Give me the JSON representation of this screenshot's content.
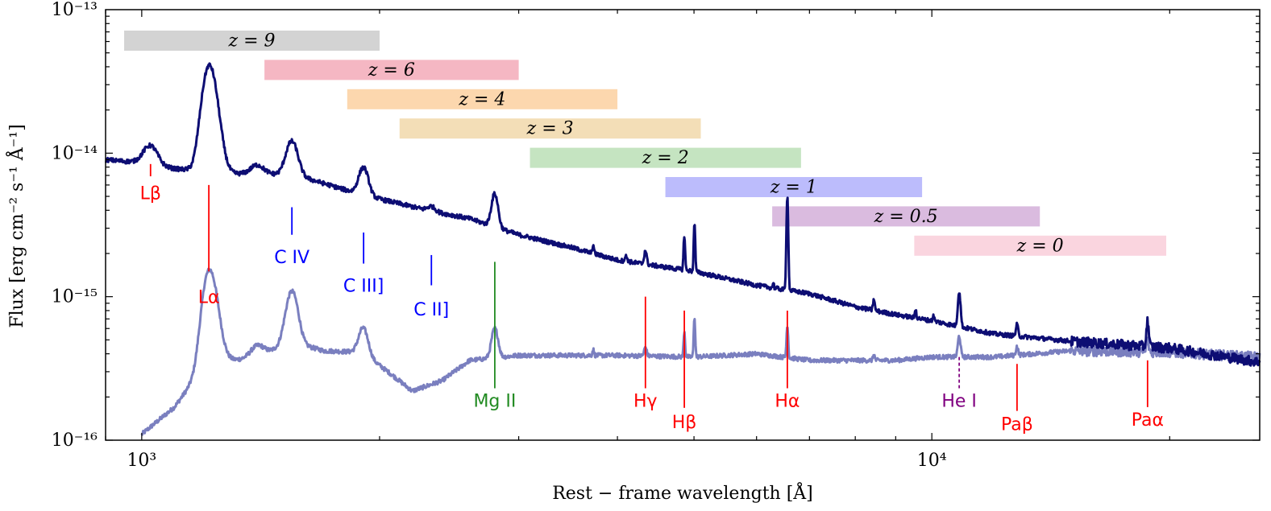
{
  "chart_data": {
    "type": "line",
    "title": "",
    "xlabel": "Rest − frame wavelength [Å]",
    "ylabel": "Flux [erg cm⁻² s⁻¹ Å⁻¹]",
    "xscale": "log",
    "yscale": "log",
    "xlim": [
      900,
      26000
    ],
    "ylim": [
      1e-16,
      1e-13
    ],
    "x_tick_labels": [
      {
        "value": 1000,
        "label": "10³"
      },
      {
        "value": 10000,
        "label": "10⁴"
      }
    ],
    "y_tick_labels": [
      {
        "value": 1e-16,
        "label": "10⁻¹⁶"
      },
      {
        "value": 1e-15,
        "label": "10⁻¹⁵"
      },
      {
        "value": 1e-14,
        "label": "10⁻¹⁴"
      },
      {
        "value": 1e-13,
        "label": "10⁻¹³"
      }
    ],
    "series": [
      {
        "name": "composite-spectrum-dark",
        "color": "#0d0d73",
        "continuum": [
          [
            900,
            9e-15
          ],
          [
            1000,
            8.6e-15
          ],
          [
            1100,
            7.8e-15
          ],
          [
            1300,
            7.2e-15
          ],
          [
            1450,
            7.2e-15
          ],
          [
            1600,
            6.8e-15
          ],
          [
            1800,
            5.6e-15
          ],
          [
            2000,
            4.8e-15
          ],
          [
            2300,
            4e-15
          ],
          [
            2600,
            3.5e-15
          ],
          [
            3000,
            2.7e-15
          ],
          [
            3500,
            2.2e-15
          ],
          [
            4000,
            1.8e-15
          ],
          [
            5000,
            1.5e-15
          ],
          [
            6000,
            1.2e-15
          ],
          [
            7000,
            1.05e-15
          ],
          [
            8000,
            8.5e-16
          ],
          [
            9000,
            7.5e-16
          ],
          [
            10000,
            6.8e-16
          ],
          [
            12000,
            5.5e-16
          ],
          [
            15000,
            4.9e-16
          ],
          [
            20000,
            4.4e-16
          ],
          [
            26000,
            3.5e-16
          ]
        ],
        "lines": [
          [
            1026,
            0.35,
            20
          ],
          [
            1216,
            4.0,
            22
          ],
          [
            1240,
            0.8,
            25
          ],
          [
            1400,
            0.15,
            25
          ],
          [
            1549,
            0.75,
            25
          ],
          [
            1909,
            0.55,
            25
          ],
          [
            2326,
            0.08,
            25
          ],
          [
            2798,
            0.7,
            25
          ],
          [
            3727,
            0.15,
            8
          ],
          [
            4102,
            0.08,
            15
          ],
          [
            4340,
            0.25,
            15
          ],
          [
            4861,
            0.75,
            10
          ],
          [
            5007,
            1.2,
            10
          ],
          [
            6563,
            3.5,
            15
          ],
          [
            6300,
            0.1,
            10
          ],
          [
            8446,
            0.2,
            20
          ],
          [
            9540,
            0.15,
            20
          ],
          [
            10049,
            0.1,
            20
          ],
          [
            10830,
            0.75,
            40
          ],
          [
            12818,
            0.2,
            40
          ],
          [
            18751,
            0.5,
            60
          ]
        ]
      },
      {
        "name": "host-subtracted-spectrum-light",
        "color": "#7a7fbf",
        "continuum": [
          [
            1000,
            1.1e-16
          ],
          [
            1100,
            1.7e-16
          ],
          [
            1200,
            3.3e-16
          ],
          [
            1300,
            3.6e-16
          ],
          [
            1400,
            3.8e-16
          ],
          [
            1500,
            4.5e-16
          ],
          [
            1600,
            4.6e-16
          ],
          [
            1700,
            4.2e-16
          ],
          [
            1900,
            4.1e-16
          ],
          [
            2050,
            3e-16
          ],
          [
            2200,
            2.2e-16
          ],
          [
            2400,
            2.6e-16
          ],
          [
            2600,
            3.6e-16
          ],
          [
            3000,
            3.9e-16
          ],
          [
            4000,
            3.9e-16
          ],
          [
            5000,
            3.8e-16
          ],
          [
            6000,
            4e-16
          ],
          [
            7000,
            3.6e-16
          ],
          [
            8000,
            3.6e-16
          ],
          [
            9000,
            3.6e-16
          ],
          [
            10000,
            3.8e-16
          ],
          [
            12000,
            3.8e-16
          ],
          [
            15000,
            4.2e-16
          ],
          [
            20000,
            4.1e-16
          ],
          [
            26000,
            3.8e-16
          ]
        ],
        "lines": [
          [
            1216,
            3.2,
            22
          ],
          [
            1240,
            0.6,
            25
          ],
          [
            1400,
            0.2,
            25
          ],
          [
            1549,
            1.4,
            25
          ],
          [
            1909,
            0.5,
            25
          ],
          [
            2798,
            0.6,
            25
          ],
          [
            3727,
            0.1,
            8
          ],
          [
            4340,
            0.15,
            15
          ],
          [
            4861,
            0.5,
            10
          ],
          [
            5007,
            0.9,
            10
          ],
          [
            6563,
            0.7,
            15
          ],
          [
            8446,
            0.1,
            20
          ],
          [
            10830,
            0.4,
            40
          ],
          [
            12818,
            0.15,
            40
          ],
          [
            18751,
            0.2,
            60
          ]
        ]
      }
    ],
    "redshift_bands": [
      {
        "label": "z = 9",
        "range": [
          950,
          2000
        ],
        "color": "#d3d3d3"
      },
      {
        "label": "z = 6",
        "range": [
          1430,
          3000
        ],
        "color": "#f5b7c3"
      },
      {
        "label": "z = 4",
        "range": [
          1820,
          4000
        ],
        "color": "#fcd7ae"
      },
      {
        "label": "z = 3",
        "range": [
          2120,
          5100
        ],
        "color": "#f3deb7"
      },
      {
        "label": "z = 2",
        "range": [
          3100,
          6830
        ],
        "color": "#c5e4c1"
      },
      {
        "label": "z = 1",
        "range": [
          4600,
          9720
        ],
        "color": "#bcbcfc"
      },
      {
        "label": "z = 0.5",
        "range": [
          6280,
          13700
        ],
        "color": "#dabbdf"
      },
      {
        "label": "z = 0",
        "range": [
          9500,
          19800
        ],
        "color": "#fad5df"
      }
    ],
    "annotations": [
      {
        "label": "Lβ",
        "wavelength": 1026,
        "color": "#ff0000",
        "flux_top": 8.4e-15,
        "flux_bottom": 6.9e-15,
        "label_flux": 5.3e-15,
        "style": "solid"
      },
      {
        "label": "Lα",
        "wavelength": 1216,
        "color": "#ff0000",
        "flux_top": 6e-15,
        "flux_bottom": 1.5e-15,
        "label_flux": 1e-15,
        "style": "solid"
      },
      {
        "label": "C IV",
        "wavelength": 1549,
        "color": "#0000ff",
        "flux_top": 4.2e-15,
        "flux_bottom": 2.7e-15,
        "label_flux": 1.9e-15,
        "style": "solid"
      },
      {
        "label": "C III]",
        "wavelength": 1909,
        "color": "#0000ff",
        "flux_top": 2.8e-15,
        "flux_bottom": 1.7e-15,
        "label_flux": 1.2e-15,
        "style": "solid"
      },
      {
        "label": "C II]",
        "wavelength": 2326,
        "color": "#0000ff",
        "flux_top": 1.95e-15,
        "flux_bottom": 1.2e-15,
        "label_flux": 8.2e-16,
        "style": "solid"
      },
      {
        "label": "Mg II",
        "wavelength": 2798,
        "color": "#228b22",
        "flux_top": 1.75e-15,
        "flux_bottom": 2.3e-16,
        "label_flux": 1.9e-16,
        "style": "solid"
      },
      {
        "label": "Hγ",
        "wavelength": 4340,
        "color": "#ff0000",
        "flux_top": 1e-15,
        "flux_bottom": 2.3e-16,
        "label_flux": 1.9e-16,
        "style": "solid"
      },
      {
        "label": "Hβ",
        "wavelength": 4861,
        "color": "#ff0000",
        "flux_top": 8e-16,
        "flux_bottom": 1.68e-16,
        "label_flux": 1.35e-16,
        "style": "solid"
      },
      {
        "label": "Hα",
        "wavelength": 6563,
        "color": "#ff0000",
        "flux_top": 8e-16,
        "flux_bottom": 2.3e-16,
        "label_flux": 1.9e-16,
        "style": "solid"
      },
      {
        "label": "He I",
        "wavelength": 10830,
        "color": "#800080",
        "flux_top": 3.8e-16,
        "flux_bottom": 2.3e-16,
        "label_flux": 1.9e-16,
        "style": "dashed"
      },
      {
        "label": "Paβ",
        "wavelength": 12818,
        "color": "#ff0000",
        "flux_top": 3.4e-16,
        "flux_bottom": 1.6e-16,
        "label_flux": 1.3e-16,
        "style": "solid"
      },
      {
        "label": "Paα",
        "wavelength": 18751,
        "color": "#ff0000",
        "flux_top": 3.6e-16,
        "flux_bottom": 1.7e-16,
        "label_flux": 1.4e-16,
        "style": "solid"
      }
    ]
  }
}
